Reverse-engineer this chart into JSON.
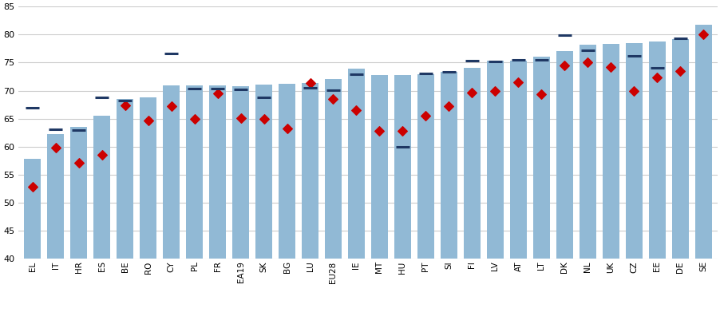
{
  "categories": [
    "EL",
    "IT",
    "HR",
    "ES",
    "BE",
    "RO",
    "CY",
    "PL",
    "FR",
    "EA19",
    "SK",
    "BG",
    "LU",
    "EU28",
    "IE",
    "MT",
    "HU",
    "PT",
    "SI",
    "FI",
    "LV",
    "AT",
    "LT",
    "DK",
    "NL",
    "UK",
    "CZ",
    "EE",
    "DE",
    "SE"
  ],
  "values_2017": [
    57.8,
    62.3,
    63.5,
    65.5,
    68.5,
    68.8,
    70.9,
    70.9,
    70.9,
    70.8,
    71.1,
    71.2,
    71.3,
    72.1,
    73.9,
    72.8,
    72.8,
    73.0,
    73.4,
    74.1,
    75.4,
    75.3,
    76.1,
    77.0,
    78.2,
    78.4,
    78.5,
    78.8,
    79.2,
    81.8
  ],
  "values_2013": [
    52.9,
    59.8,
    57.2,
    58.6,
    67.4,
    64.7,
    67.3,
    64.9,
    69.5,
    65.1,
    65.0,
    63.3,
    71.3,
    68.5,
    66.5,
    62.8,
    62.8,
    65.6,
    67.2,
    69.6,
    70.0,
    71.5,
    69.4,
    74.5,
    75.1,
    74.2,
    70.0,
    72.3,
    73.5,
    80.0
  ],
  "values_2008": [
    67.0,
    63.1,
    63.0,
    68.8,
    68.2,
    null,
    76.7,
    70.4,
    70.4,
    70.2,
    68.8,
    null,
    70.5,
    70.1,
    72.9,
    null,
    60.0,
    73.1,
    73.3,
    75.3,
    75.2,
    75.5,
    75.5,
    79.9,
    77.2,
    null,
    76.2,
    74.1,
    79.3,
    null
  ],
  "bar_color": "#91b9d5",
  "scatter_2013_color": "#cc0000",
  "line_2008_color": "#1f3864",
  "ymin": 40,
  "ymax": 85,
  "yticks": [
    40,
    45,
    50,
    55,
    60,
    65,
    70,
    75,
    80,
    85
  ],
  "background_color": "#ffffff",
  "grid_color": "#cccccc"
}
